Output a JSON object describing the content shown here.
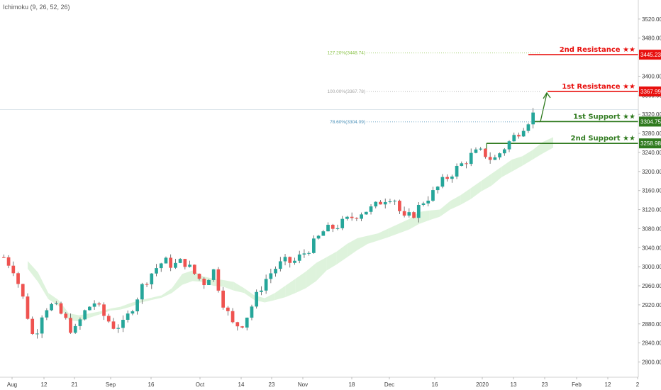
{
  "indicator": "Ichimoku (9, 26, 52, 26)",
  "colors": {
    "up": "#26a69a",
    "down": "#ef5350",
    "wick": "#555555",
    "resistance": "#e8100e",
    "support": "#2f7a1e",
    "fib_127": "#8bc34a",
    "fib_100": "#a5a5a5",
    "fib_786": "#4a90b8",
    "cloud_green": "#d8f1d6",
    "cloud_red": "#fbe1e1",
    "arrow": "#2f7a1e"
  },
  "chart_data": {
    "type": "candlestick",
    "title": "",
    "xlabel": "",
    "ylabel": "",
    "ylim": [
      2768,
      3560
    ],
    "y_ticks": [
      2800,
      2840,
      2880,
      2920,
      2960,
      3000,
      3040,
      3080,
      3120,
      3160,
      3200,
      3240,
      3280,
      3320,
      3360,
      3400,
      3440,
      3480,
      3520
    ],
    "y_tick_labels": [
      "2800.00",
      "2840.00",
      "2880.00",
      "2920.00",
      "2960.00",
      "3000.00",
      "3040.00",
      "3080.00",
      "3120.00",
      "3160.00",
      "3200.00",
      "3240.00",
      "3280.00",
      "3320.00",
      "3360.00",
      "3400.00",
      "3440.00",
      "3480.00",
      "3520.00"
    ],
    "x_tick_labels": [
      "Aug",
      "12",
      "21",
      "Sep",
      "16",
      "Oct",
      "14",
      "23",
      "Nov",
      "18",
      "Dec",
      "16",
      "2020",
      "13",
      "23",
      "Feb",
      "12",
      "2"
    ],
    "price_path": [
      [
        3020,
        3020
      ],
      [
        3014,
        2975
      ],
      [
        2968,
        2888
      ],
      [
        2860,
        2833
      ],
      [
        2900,
        2928
      ],
      [
        2922,
        2916
      ],
      [
        2905,
        2882
      ],
      [
        2870,
        2850
      ],
      [
        2890,
        2915
      ],
      [
        2928,
        2926
      ],
      [
        2915,
        2880
      ],
      [
        2880,
        2870
      ],
      [
        2865,
        2892
      ],
      [
        2920,
        2923
      ],
      [
        2945,
        2985
      ],
      [
        2990,
        2995
      ],
      [
        3005,
        3020
      ],
      [
        3005,
        3000
      ],
      [
        3015,
        3010
      ],
      [
        2990,
        2985
      ],
      [
        2960,
        2972
      ],
      [
        2985,
        3000
      ],
      [
        2950,
        2895
      ],
      [
        2880,
        2870
      ],
      [
        2870,
        2895
      ],
      [
        2920,
        2930
      ],
      [
        2960,
        2975
      ],
      [
        2990,
        2998
      ],
      [
        3005,
        3015
      ],
      [
        3010,
        3008
      ],
      [
        3020,
        3035
      ],
      [
        3045,
        3050
      ],
      [
        3070,
        3078
      ],
      [
        3080,
        3085
      ],
      [
        3095,
        3090
      ],
      [
        3100,
        3112
      ],
      [
        3115,
        3120
      ],
      [
        3125,
        3120
      ],
      [
        3135,
        3150
      ],
      [
        3160,
        3140
      ],
      [
        3110,
        3085
      ],
      [
        3100,
        3120
      ],
      [
        3135,
        3140
      ],
      [
        3150,
        3160
      ],
      [
        3175,
        3185
      ],
      [
        3195,
        3205
      ],
      [
        3210,
        3225
      ],
      [
        3230,
        3245
      ],
      [
        3250,
        3230
      ],
      [
        3220,
        3225
      ],
      [
        3240,
        3255
      ],
      [
        3262,
        3280
      ],
      [
        3290,
        3300
      ],
      [
        3312,
        3328
      ]
    ],
    "ichimoku_cloud": [
      [
        null,
        null
      ],
      [
        null,
        null
      ],
      [
        3012,
        2996
      ],
      [
        2988,
        2968
      ],
      [
        2945,
        2932
      ],
      [
        2930,
        2918
      ],
      [
        2902,
        2888
      ],
      [
        2898,
        2885
      ],
      [
        2902,
        2893
      ],
      [
        2906,
        2900
      ],
      [
        2912,
        2908
      ],
      [
        2916,
        2910
      ],
      [
        2924,
        2916
      ],
      [
        2930,
        2925
      ],
      [
        2935,
        2930
      ],
      [
        2940,
        2935
      ],
      [
        2955,
        2945
      ],
      [
        2985,
        2962
      ],
      [
        2992,
        2970
      ],
      [
        2980,
        2968
      ],
      [
        2975,
        2960
      ],
      [
        2972,
        2958
      ],
      [
        2968,
        2950
      ],
      [
        2955,
        2945
      ],
      [
        2940,
        2930
      ],
      [
        2934,
        2925
      ],
      [
        2945,
        2930
      ],
      [
        2960,
        2936
      ],
      [
        2975,
        2945
      ],
      [
        2990,
        2955
      ],
      [
        3008,
        2970
      ],
      [
        3020,
        2992
      ],
      [
        3032,
        3005
      ],
      [
        3048,
        3020
      ],
      [
        3060,
        3035
      ],
      [
        3065,
        3048
      ],
      [
        3070,
        3055
      ],
      [
        3080,
        3062
      ],
      [
        3090,
        3070
      ],
      [
        3100,
        3078
      ],
      [
        3115,
        3090
      ],
      [
        3118,
        3098
      ],
      [
        3120,
        3105
      ],
      [
        3138,
        3120
      ],
      [
        3150,
        3130
      ],
      [
        3165,
        3142
      ],
      [
        3180,
        3158
      ],
      [
        3195,
        3170
      ],
      [
        3210,
        3188
      ],
      [
        3225,
        3200
      ],
      [
        3232,
        3212
      ],
      [
        3245,
        3225
      ],
      [
        3262,
        3238
      ],
      [
        3272,
        3250
      ]
    ],
    "fib_levels": [
      {
        "label": "127.20%(3448.74)",
        "value": 3448.74,
        "color_key": "fib_127"
      },
      {
        "label": "100.00%(3367.78)",
        "value": 3367.78,
        "color_key": "fib_100"
      },
      {
        "label": "78.60%(3304.09)",
        "value": 3304.09,
        "color_key": "fib_786"
      }
    ],
    "levels": [
      {
        "name": "2nd Resistance ★★",
        "value": 3445.23,
        "tag": "3445.23",
        "kind": "resistance"
      },
      {
        "name": "1st Resistance ★★",
        "value": 3367.99,
        "tag": "3367.99",
        "kind": "resistance"
      },
      {
        "name": "1st Support ★★",
        "value": 3304.75,
        "tag": "3304.75",
        "kind": "support"
      },
      {
        "name": "2nd Support ★★",
        "value": 3258.98,
        "tag": "3258.98",
        "kind": "support"
      }
    ],
    "current_price_line": 3330
  }
}
